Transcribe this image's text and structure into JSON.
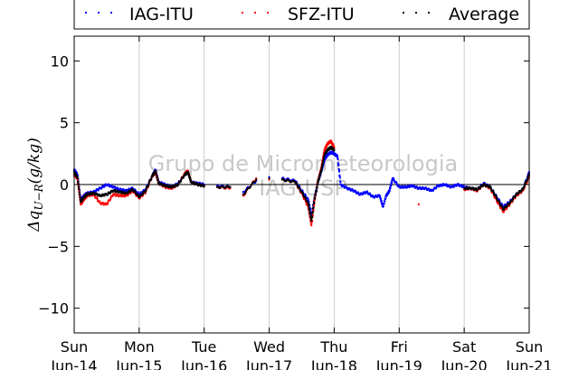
{
  "chart_data": {
    "type": "scatter",
    "ylabel": "Δq_{U−R}(g/kg)",
    "ylabel_main": "Δq",
    "ylabel_sub": "U−R",
    "ylabel_units": "(g/kg)",
    "ylim": [
      -12,
      12
    ],
    "xlim": [
      0,
      7
    ],
    "yticks": [
      {
        "value": 10,
        "label": "10"
      },
      {
        "value": 5,
        "label": "5"
      },
      {
        "value": 0,
        "label": "0"
      },
      {
        "value": -5,
        "label": "−5"
      },
      {
        "value": -10,
        "label": "−10"
      }
    ],
    "xticks": [
      {
        "value": 0,
        "day": "Sun",
        "date": "Jun-14"
      },
      {
        "value": 1,
        "day": "Mon",
        "date": "Jun-15"
      },
      {
        "value": 2,
        "day": "Tue",
        "date": "Jun-16"
      },
      {
        "value": 3,
        "day": "Wed",
        "date": "Jun-17"
      },
      {
        "value": 4,
        "day": "Thu",
        "date": "Jun-18"
      },
      {
        "value": 5,
        "day": "Fri",
        "date": "Jun-19"
      },
      {
        "value": 6,
        "day": "Sat",
        "date": "Jun-20"
      },
      {
        "value": 7,
        "day": "Sun",
        "date": "Jun-21"
      }
    ],
    "grid": "vertical",
    "zero_line": true,
    "legend_placement": "top",
    "watermark": [
      "Grupo de Micrometeorologia",
      "IAG-USP"
    ],
    "series": [
      {
        "name": "IAG-ITU",
        "color": "#0000ff",
        "x": [
          0,
          0.05,
          0.1,
          0.15,
          0.2,
          0.3,
          0.4,
          0.5,
          0.6,
          0.7,
          0.8,
          0.9,
          1.0,
          1.1,
          1.2,
          1.25,
          1.3,
          1.4,
          1.5,
          1.6,
          1.7,
          1.75,
          1.8,
          1.9,
          2.0,
          2.2,
          2.4,
          2.6,
          2.8,
          3.0,
          3.2,
          3.4,
          3.5,
          3.6,
          3.65,
          3.7,
          3.75,
          3.8,
          3.85,
          3.9,
          3.95,
          4.0,
          4.05,
          4.1,
          4.2,
          4.3,
          4.4,
          4.5,
          4.6,
          4.7,
          4.75,
          4.8,
          4.85,
          4.9,
          5.0,
          5.1,
          5.2,
          5.3,
          5.4,
          5.5,
          5.6,
          5.7,
          5.8,
          5.9,
          6.0,
          6.1,
          6.2,
          6.3,
          6.4,
          6.5,
          6.6,
          6.7,
          6.8,
          6.9,
          7.0
        ],
        "y": [
          1.2,
          0.8,
          -1.2,
          -0.9,
          -0.7,
          -0.6,
          -0.3,
          0.0,
          -0.2,
          -0.4,
          -0.5,
          -0.3,
          -0.8,
          -0.4,
          0.7,
          1.2,
          0.2,
          0.0,
          -0.2,
          0.1,
          0.8,
          1.0,
          0.2,
          0.1,
          0.0,
          -0.1,
          -0.2,
          -0.6,
          0.3,
          0.6,
          0.5,
          0.3,
          -0.5,
          -1.2,
          -2.5,
          -1.0,
          0.2,
          1.0,
          2.0,
          2.4,
          2.6,
          2.5,
          2.3,
          0.0,
          -0.3,
          -0.5,
          -0.8,
          -0.6,
          -1.0,
          -0.9,
          -1.8,
          -0.9,
          -0.5,
          0.5,
          -0.2,
          -0.2,
          -0.1,
          -0.3,
          -0.3,
          -0.5,
          -0.1,
          0.0,
          -0.2,
          0.0,
          -0.2,
          -0.3,
          -0.4,
          0.1,
          -0.2,
          -1.0,
          -1.8,
          -1.4,
          -0.8,
          -0.4,
          1.0
        ]
      },
      {
        "name": "SFZ-ITU",
        "color": "#ff0000",
        "x": [
          0,
          0.05,
          0.1,
          0.15,
          0.2,
          0.3,
          0.4,
          0.5,
          0.6,
          0.7,
          0.8,
          0.9,
          1.0,
          1.1,
          1.2,
          1.25,
          1.3,
          1.4,
          1.5,
          1.6,
          1.7,
          1.75,
          1.8,
          1.9,
          2.0,
          2.2,
          2.4,
          2.6,
          2.8,
          3.0,
          3.2,
          3.4,
          3.5,
          3.6,
          3.65,
          3.7,
          3.75,
          3.8,
          3.85,
          3.9,
          3.95,
          4.0,
          5.3,
          6.0,
          6.1,
          6.2,
          6.3,
          6.4,
          6.5,
          6.6,
          6.7,
          6.8,
          6.9,
          7.0
        ],
        "y": [
          0.8,
          0.5,
          -1.6,
          -1.2,
          -0.9,
          -0.8,
          -1.5,
          -1.6,
          -0.8,
          -0.9,
          -0.9,
          -0.5,
          -1.1,
          -0.6,
          0.7,
          1.0,
          0.1,
          -0.2,
          -0.3,
          0.0,
          0.9,
          1.1,
          0.2,
          0.0,
          -0.1,
          -0.2,
          -0.3,
          -0.9,
          0.5,
          0.4,
          0.4,
          0.2,
          -0.7,
          -1.8,
          -3.3,
          -1.2,
          0.3,
          1.3,
          2.8,
          3.3,
          3.5,
          3.0,
          -1.6,
          -0.4,
          -0.3,
          -0.5,
          0.0,
          -0.3,
          -1.3,
          -2.2,
          -1.6,
          -0.9,
          -0.5,
          0.6
        ]
      },
      {
        "name": "Average",
        "color": "#000000",
        "x": [
          0,
          0.05,
          0.1,
          0.15,
          0.2,
          0.3,
          0.4,
          0.5,
          0.6,
          0.7,
          0.8,
          0.9,
          1.0,
          1.1,
          1.2,
          1.25,
          1.3,
          1.4,
          1.5,
          1.6,
          1.7,
          1.75,
          1.8,
          1.9,
          2.0,
          2.2,
          2.4,
          2.6,
          2.8,
          3.0,
          3.2,
          3.4,
          3.5,
          3.6,
          3.65,
          3.7,
          3.75,
          3.8,
          3.85,
          3.9,
          3.95,
          4.0,
          6.0,
          6.1,
          6.2,
          6.3,
          6.4,
          6.5,
          6.6,
          6.7,
          6.8,
          6.9,
          7.0
        ],
        "y": [
          1.0,
          0.6,
          -1.4,
          -1.0,
          -0.8,
          -0.7,
          -0.9,
          -0.8,
          -0.5,
          -0.6,
          -0.7,
          -0.4,
          -1.0,
          -0.5,
          0.7,
          1.1,
          0.1,
          -0.1,
          -0.2,
          0.0,
          0.8,
          1.0,
          0.2,
          0.0,
          -0.1,
          -0.2,
          -0.2,
          -0.8,
          0.4,
          0.5,
          0.4,
          0.2,
          -0.6,
          -1.5,
          -2.9,
          -1.1,
          0.2,
          1.1,
          2.4,
          2.8,
          3.0,
          2.8,
          -0.3,
          -0.3,
          -0.4,
          0.0,
          -0.2,
          -1.1,
          -2.0,
          -1.5,
          -0.8,
          -0.4,
          0.8
        ]
      }
    ]
  }
}
